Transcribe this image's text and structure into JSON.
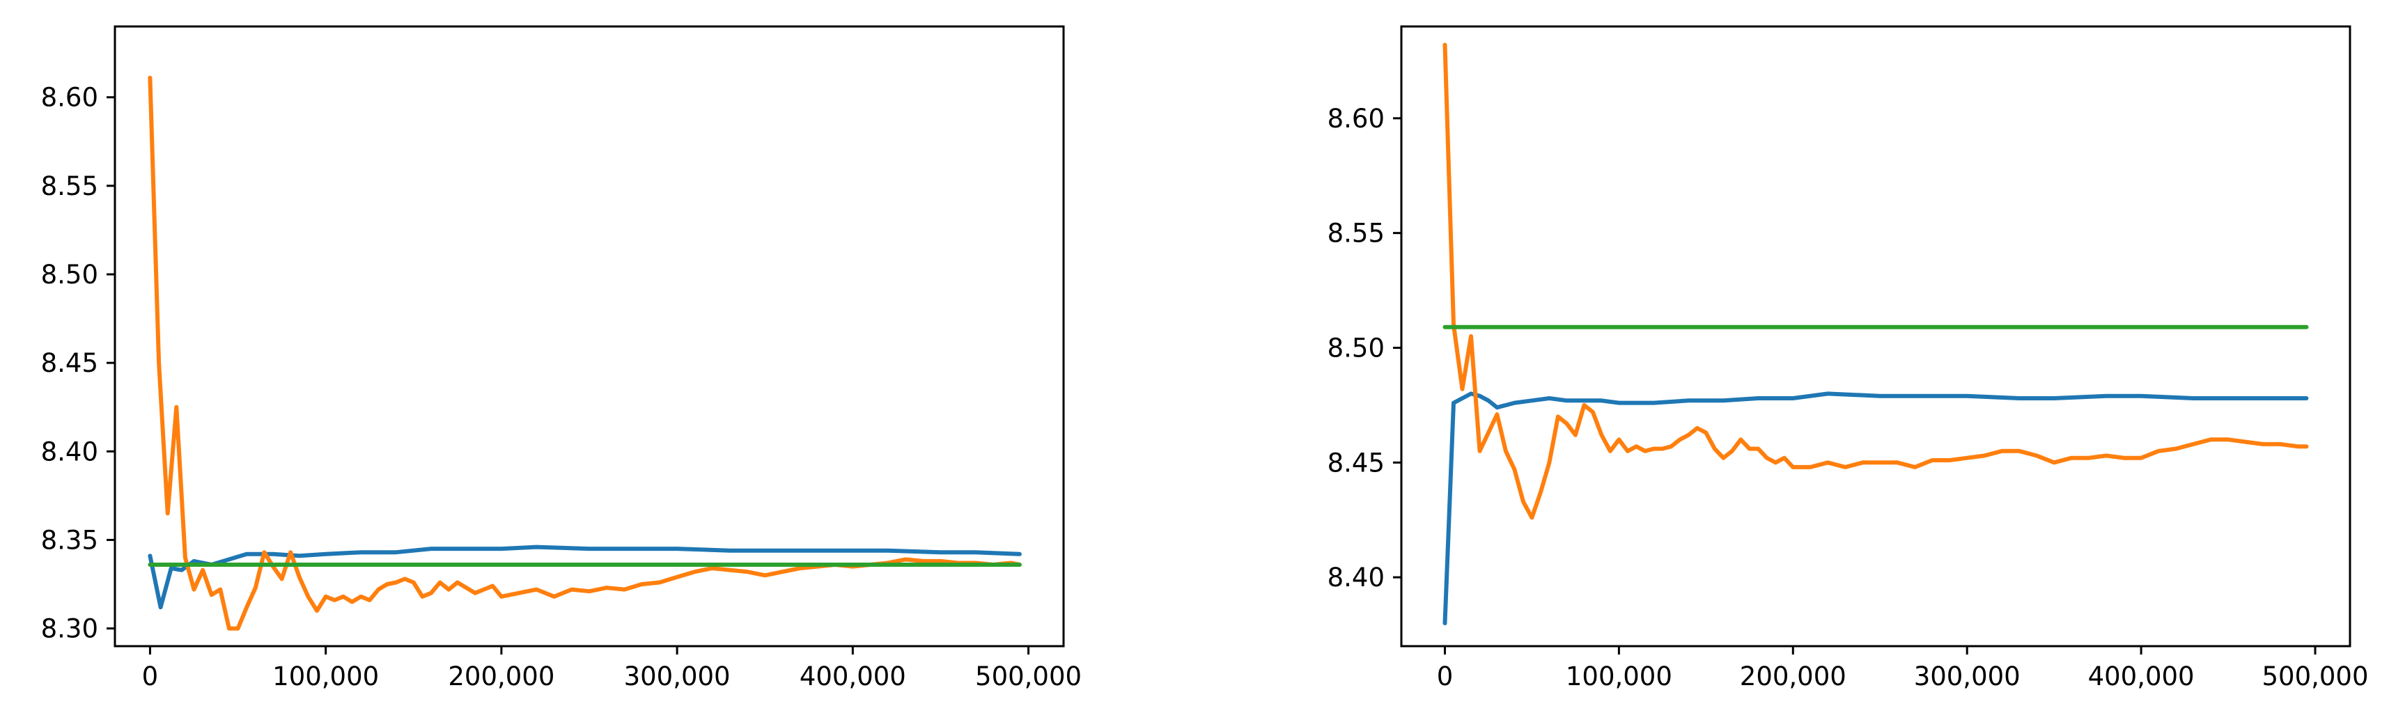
{
  "charts": [
    {
      "chart_data": {
        "type": "line",
        "title": "",
        "xlabel": "",
        "ylabel": "",
        "xlim": [
          -20000,
          520000
        ],
        "ylim": [
          8.29,
          8.64
        ],
        "xticks": [
          0,
          100000,
          200000,
          300000,
          400000,
          500000
        ],
        "xtick_labels": [
          "0",
          "100,000",
          "200,000",
          "300,000",
          "400,000",
          "500,000"
        ],
        "yticks": [
          8.3,
          8.35,
          8.4,
          8.45,
          8.5,
          8.55,
          8.6
        ],
        "ytick_labels": [
          "8.30",
          "8.35",
          "8.40",
          "8.45",
          "8.50",
          "8.55",
          "8.60"
        ],
        "grid": false,
        "series": [
          {
            "color": "#1f77b4",
            "x": [
              0,
              6000,
              12000,
              18000,
              25000,
              35000,
              45000,
              55000,
              70000,
              85000,
              100000,
              120000,
              140000,
              160000,
              180000,
              200000,
              220000,
              250000,
              280000,
              300000,
              330000,
              350000,
              380000,
              400000,
              420000,
              450000,
              470000,
              495000
            ],
            "y": [
              8.341,
              8.312,
              8.334,
              8.333,
              8.338,
              8.336,
              8.339,
              8.342,
              8.342,
              8.341,
              8.342,
              8.343,
              8.343,
              8.345,
              8.345,
              8.345,
              8.346,
              8.345,
              8.345,
              8.345,
              8.344,
              8.344,
              8.344,
              8.344,
              8.344,
              8.343,
              8.343,
              8.342
            ]
          },
          {
            "color": "#ff7f0e",
            "x": [
              0,
              5000,
              10000,
              15000,
              20000,
              25000,
              30000,
              35000,
              40000,
              45000,
              50000,
              55000,
              60000,
              65000,
              70000,
              75000,
              80000,
              85000,
              90000,
              95000,
              100000,
              105000,
              110000,
              115000,
              120000,
              125000,
              130000,
              135000,
              140000,
              145000,
              150000,
              155000,
              160000,
              165000,
              170000,
              175000,
              180000,
              185000,
              190000,
              195000,
              200000,
              210000,
              220000,
              230000,
              240000,
              250000,
              260000,
              270000,
              280000,
              290000,
              300000,
              310000,
              320000,
              330000,
              340000,
              350000,
              360000,
              370000,
              380000,
              390000,
              400000,
              410000,
              420000,
              430000,
              440000,
              450000,
              460000,
              470000,
              480000,
              490000,
              495000
            ],
            "y": [
              8.611,
              8.45,
              8.365,
              8.425,
              8.34,
              8.322,
              8.333,
              8.319,
              8.322,
              8.3,
              8.3,
              8.312,
              8.323,
              8.343,
              8.335,
              8.328,
              8.343,
              8.329,
              8.318,
              8.31,
              8.318,
              8.316,
              8.318,
              8.315,
              8.318,
              8.316,
              8.322,
              8.325,
              8.326,
              8.328,
              8.326,
              8.318,
              8.32,
              8.326,
              8.322,
              8.326,
              8.323,
              8.32,
              8.322,
              8.324,
              8.318,
              8.32,
              8.322,
              8.318,
              8.322,
              8.321,
              8.323,
              8.322,
              8.325,
              8.326,
              8.329,
              8.332,
              8.334,
              8.333,
              8.332,
              8.33,
              8.332,
              8.334,
              8.335,
              8.336,
              8.335,
              8.336,
              8.337,
              8.339,
              8.338,
              8.338,
              8.337,
              8.337,
              8.336,
              8.337,
              8.336
            ]
          },
          {
            "color": "#2ca02c",
            "x": [
              0,
              495000
            ],
            "y": [
              8.336,
              8.336
            ]
          }
        ]
      }
    },
    {
      "chart_data": {
        "type": "line",
        "title": "",
        "xlabel": "",
        "ylabel": "",
        "xlim": [
          -25000,
          520000
        ],
        "ylim": [
          8.37,
          8.64
        ],
        "xticks": [
          0,
          100000,
          200000,
          300000,
          400000,
          500000
        ],
        "xtick_labels": [
          "0",
          "100,000",
          "200,000",
          "300,000",
          "400,000",
          "500,000"
        ],
        "yticks": [
          8.4,
          8.45,
          8.5,
          8.55,
          8.6
        ],
        "ytick_labels": [
          "8.40",
          "8.45",
          "8.50",
          "8.55",
          "8.60"
        ],
        "grid": false,
        "series": [
          {
            "color": "#1f77b4",
            "x": [
              0,
              5000,
              10000,
              15000,
              20000,
              25000,
              30000,
              40000,
              50000,
              60000,
              70000,
              80000,
              90000,
              100000,
              120000,
              140000,
              160000,
              180000,
              200000,
              220000,
              250000,
              280000,
              300000,
              330000,
              350000,
              380000,
              400000,
              430000,
              460000,
              495000
            ],
            "y": [
              8.38,
              8.476,
              8.478,
              8.48,
              8.479,
              8.477,
              8.474,
              8.476,
              8.477,
              8.478,
              8.477,
              8.477,
              8.477,
              8.476,
              8.476,
              8.477,
              8.477,
              8.478,
              8.478,
              8.48,
              8.479,
              8.479,
              8.479,
              8.478,
              8.478,
              8.479,
              8.479,
              8.478,
              8.478,
              8.478
            ]
          },
          {
            "color": "#ff7f0e",
            "x": [
              0,
              5000,
              10000,
              15000,
              20000,
              25000,
              30000,
              35000,
              40000,
              45000,
              50000,
              55000,
              60000,
              65000,
              70000,
              75000,
              80000,
              85000,
              90000,
              95000,
              100000,
              105000,
              110000,
              115000,
              120000,
              125000,
              130000,
              135000,
              140000,
              145000,
              150000,
              155000,
              160000,
              165000,
              170000,
              175000,
              180000,
              185000,
              190000,
              195000,
              200000,
              210000,
              220000,
              230000,
              240000,
              250000,
              260000,
              270000,
              280000,
              290000,
              300000,
              310000,
              320000,
              330000,
              340000,
              350000,
              360000,
              370000,
              380000,
              390000,
              400000,
              410000,
              420000,
              430000,
              440000,
              450000,
              460000,
              470000,
              480000,
              490000,
              495000
            ],
            "y": [
              8.632,
              8.51,
              8.482,
              8.505,
              8.455,
              8.463,
              8.471,
              8.455,
              8.447,
              8.433,
              8.426,
              8.437,
              8.45,
              8.47,
              8.467,
              8.462,
              8.475,
              8.472,
              8.462,
              8.455,
              8.46,
              8.455,
              8.457,
              8.455,
              8.456,
              8.456,
              8.457,
              8.46,
              8.462,
              8.465,
              8.463,
              8.456,
              8.452,
              8.455,
              8.46,
              8.456,
              8.456,
              8.452,
              8.45,
              8.452,
              8.448,
              8.448,
              8.45,
              8.448,
              8.45,
              8.45,
              8.45,
              8.448,
              8.451,
              8.451,
              8.452,
              8.453,
              8.455,
              8.455,
              8.453,
              8.45,
              8.452,
              8.452,
              8.453,
              8.452,
              8.452,
              8.455,
              8.456,
              8.458,
              8.46,
              8.46,
              8.459,
              8.458,
              8.458,
              8.457,
              8.457
            ]
          },
          {
            "color": "#2ca02c",
            "x": [
              0,
              495000
            ],
            "y": [
              8.509,
              8.509
            ]
          }
        ]
      }
    }
  ]
}
